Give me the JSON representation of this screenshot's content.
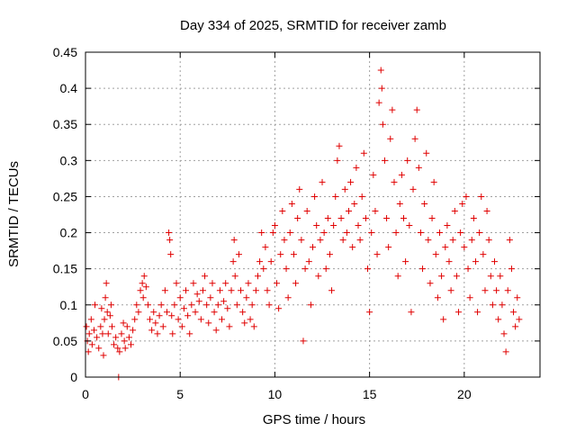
{
  "chart_data": {
    "type": "scatter",
    "title": "Day 334 of 2025, SRMTID for receiver zamb",
    "xlabel": "GPS time / hours",
    "ylabel": "SRMTID / TECUs",
    "xlim": [
      0,
      24
    ],
    "ylim": [
      0,
      0.45
    ],
    "xticks": [
      0,
      5,
      10,
      15,
      20
    ],
    "yticks": [
      0,
      0.05,
      0.1,
      0.15,
      0.2,
      0.25,
      0.3,
      0.35,
      0.4,
      0.45
    ],
    "xtick_labels": [
      "0",
      "5",
      "10",
      "15",
      "20"
    ],
    "ytick_labels": [
      "0",
      "0.05",
      "0.1",
      "0.15",
      "0.2",
      "0.25",
      "0.3",
      "0.35",
      "0.4",
      "0.45"
    ],
    "grid": true,
    "marker": "+",
    "color": "#e00000",
    "series": [
      {
        "name": "SRMTID",
        "points": [
          [
            0.05,
            0.07
          ],
          [
            0.1,
            0.05
          ],
          [
            0.15,
            0.035
          ],
          [
            0.2,
            0.06
          ],
          [
            0.3,
            0.08
          ],
          [
            0.35,
            0.045
          ],
          [
            0.45,
            0.065
          ],
          [
            0.5,
            0.1
          ],
          [
            0.6,
            0.055
          ],
          [
            0.7,
            0.04
          ],
          [
            0.8,
            0.07
          ],
          [
            0.85,
            0.095
          ],
          [
            0.9,
            0.06
          ],
          [
            0.95,
            0.03
          ],
          [
            1.0,
            0.08
          ],
          [
            1.05,
            0.11
          ],
          [
            1.1,
            0.13
          ],
          [
            1.15,
            0.09
          ],
          [
            1.2,
            0.06
          ],
          [
            1.3,
            0.085
          ],
          [
            1.35,
            0.1
          ],
          [
            1.4,
            0.07
          ],
          [
            1.5,
            0.045
          ],
          [
            1.6,
            0.055
          ],
          [
            1.7,
            0.04
          ],
          [
            1.75,
            0.0
          ],
          [
            1.8,
            0.035
          ],
          [
            1.9,
            0.06
          ],
          [
            2.0,
            0.075
          ],
          [
            2.05,
            0.05
          ],
          [
            2.1,
            0.04
          ],
          [
            2.2,
            0.07
          ],
          [
            2.3,
            0.055
          ],
          [
            2.4,
            0.045
          ],
          [
            2.5,
            0.065
          ],
          [
            2.6,
            0.08
          ],
          [
            2.7,
            0.1
          ],
          [
            2.8,
            0.09
          ],
          [
            2.9,
            0.12
          ],
          [
            3.0,
            0.13
          ],
          [
            3.05,
            0.11
          ],
          [
            3.1,
            0.14
          ],
          [
            3.2,
            0.125
          ],
          [
            3.3,
            0.1
          ],
          [
            3.4,
            0.08
          ],
          [
            3.5,
            0.065
          ],
          [
            3.6,
            0.09
          ],
          [
            3.7,
            0.075
          ],
          [
            3.8,
            0.06
          ],
          [
            3.9,
            0.085
          ],
          [
            4.0,
            0.1
          ],
          [
            4.1,
            0.07
          ],
          [
            4.2,
            0.12
          ],
          [
            4.3,
            0.09
          ],
          [
            4.4,
            0.2
          ],
          [
            4.45,
            0.19
          ],
          [
            4.5,
            0.17
          ],
          [
            4.55,
            0.085
          ],
          [
            4.6,
            0.06
          ],
          [
            4.7,
            0.1
          ],
          [
            4.8,
            0.13
          ],
          [
            4.9,
            0.08
          ],
          [
            5.0,
            0.11
          ],
          [
            5.1,
            0.07
          ],
          [
            5.2,
            0.095
          ],
          [
            5.3,
            0.12
          ],
          [
            5.4,
            0.085
          ],
          [
            5.5,
            0.06
          ],
          [
            5.6,
            0.1
          ],
          [
            5.7,
            0.13
          ],
          [
            5.8,
            0.09
          ],
          [
            5.9,
            0.115
          ],
          [
            6.0,
            0.105
          ],
          [
            6.1,
            0.08
          ],
          [
            6.2,
            0.12
          ],
          [
            6.3,
            0.14
          ],
          [
            6.4,
            0.1
          ],
          [
            6.5,
            0.075
          ],
          [
            6.6,
            0.11
          ],
          [
            6.7,
            0.13
          ],
          [
            6.8,
            0.09
          ],
          [
            6.9,
            0.065
          ],
          [
            7.0,
            0.1
          ],
          [
            7.1,
            0.12
          ],
          [
            7.2,
            0.08
          ],
          [
            7.3,
            0.105
          ],
          [
            7.4,
            0.13
          ],
          [
            7.5,
            0.095
          ],
          [
            7.6,
            0.07
          ],
          [
            7.7,
            0.12
          ],
          [
            7.8,
            0.16
          ],
          [
            7.85,
            0.19
          ],
          [
            7.9,
            0.14
          ],
          [
            8.0,
            0.1
          ],
          [
            8.1,
            0.17
          ],
          [
            8.2,
            0.12
          ],
          [
            8.3,
            0.09
          ],
          [
            8.4,
            0.075
          ],
          [
            8.5,
            0.11
          ],
          [
            8.6,
            0.13
          ],
          [
            8.7,
            0.08
          ],
          [
            8.8,
            0.1
          ],
          [
            8.9,
            0.07
          ],
          [
            9.0,
            0.12
          ],
          [
            9.1,
            0.14
          ],
          [
            9.2,
            0.16
          ],
          [
            9.3,
            0.2
          ],
          [
            9.4,
            0.15
          ],
          [
            9.5,
            0.18
          ],
          [
            9.6,
            0.12
          ],
          [
            9.7,
            0.1
          ],
          [
            9.8,
            0.16
          ],
          [
            9.9,
            0.2
          ],
          [
            10.0,
            0.21
          ],
          [
            10.1,
            0.13
          ],
          [
            10.2,
            0.095
          ],
          [
            10.3,
            0.17
          ],
          [
            10.4,
            0.23
          ],
          [
            10.5,
            0.19
          ],
          [
            10.6,
            0.15
          ],
          [
            10.7,
            0.11
          ],
          [
            10.8,
            0.2
          ],
          [
            10.9,
            0.24
          ],
          [
            11.0,
            0.17
          ],
          [
            11.1,
            0.13
          ],
          [
            11.2,
            0.22
          ],
          [
            11.3,
            0.26
          ],
          [
            11.4,
            0.19
          ],
          [
            11.5,
            0.05
          ],
          [
            11.6,
            0.15
          ],
          [
            11.7,
            0.23
          ],
          [
            11.8,
            0.16
          ],
          [
            11.9,
            0.1
          ],
          [
            12.0,
            0.18
          ],
          [
            12.1,
            0.25
          ],
          [
            12.2,
            0.21
          ],
          [
            12.3,
            0.14
          ],
          [
            12.4,
            0.19
          ],
          [
            12.5,
            0.27
          ],
          [
            12.6,
            0.2
          ],
          [
            12.7,
            0.15
          ],
          [
            12.8,
            0.22
          ],
          [
            12.9,
            0.17
          ],
          [
            13.0,
            0.12
          ],
          [
            13.1,
            0.21
          ],
          [
            13.2,
            0.25
          ],
          [
            13.3,
            0.3
          ],
          [
            13.4,
            0.32
          ],
          [
            13.5,
            0.22
          ],
          [
            13.6,
            0.19
          ],
          [
            13.7,
            0.26
          ],
          [
            13.8,
            0.2
          ],
          [
            13.9,
            0.23
          ],
          [
            14.0,
            0.27
          ],
          [
            14.1,
            0.18
          ],
          [
            14.2,
            0.24
          ],
          [
            14.3,
            0.29
          ],
          [
            14.4,
            0.21
          ],
          [
            14.5,
            0.19
          ],
          [
            14.6,
            0.25
          ],
          [
            14.7,
            0.31
          ],
          [
            14.8,
            0.22
          ],
          [
            14.9,
            0.15
          ],
          [
            15.0,
            0.09
          ],
          [
            15.1,
            0.2
          ],
          [
            15.2,
            0.28
          ],
          [
            15.3,
            0.23
          ],
          [
            15.4,
            0.17
          ],
          [
            15.5,
            0.38
          ],
          [
            15.6,
            0.425
          ],
          [
            15.65,
            0.4
          ],
          [
            15.7,
            0.35
          ],
          [
            15.8,
            0.3
          ],
          [
            15.9,
            0.22
          ],
          [
            16.0,
            0.18
          ],
          [
            16.1,
            0.33
          ],
          [
            16.2,
            0.37
          ],
          [
            16.3,
            0.27
          ],
          [
            16.4,
            0.2
          ],
          [
            16.5,
            0.14
          ],
          [
            16.6,
            0.24
          ],
          [
            16.7,
            0.28
          ],
          [
            16.8,
            0.22
          ],
          [
            16.9,
            0.16
          ],
          [
            17.0,
            0.3
          ],
          [
            17.1,
            0.21
          ],
          [
            17.2,
            0.09
          ],
          [
            17.3,
            0.26
          ],
          [
            17.4,
            0.33
          ],
          [
            17.5,
            0.37
          ],
          [
            17.6,
            0.29
          ],
          [
            17.7,
            0.2
          ],
          [
            17.8,
            0.15
          ],
          [
            17.9,
            0.24
          ],
          [
            18.0,
            0.31
          ],
          [
            18.1,
            0.19
          ],
          [
            18.2,
            0.13
          ],
          [
            18.3,
            0.22
          ],
          [
            18.4,
            0.27
          ],
          [
            18.5,
            0.17
          ],
          [
            18.6,
            0.11
          ],
          [
            18.7,
            0.2
          ],
          [
            18.8,
            0.14
          ],
          [
            18.9,
            0.08
          ],
          [
            19.0,
            0.18
          ],
          [
            19.1,
            0.21
          ],
          [
            19.2,
            0.16
          ],
          [
            19.3,
            0.12
          ],
          [
            19.4,
            0.19
          ],
          [
            19.5,
            0.23
          ],
          [
            19.6,
            0.14
          ],
          [
            19.7,
            0.09
          ],
          [
            19.8,
            0.2
          ],
          [
            19.9,
            0.24
          ],
          [
            20.0,
            0.18
          ],
          [
            20.1,
            0.25
          ],
          [
            20.2,
            0.15
          ],
          [
            20.3,
            0.11
          ],
          [
            20.4,
            0.19
          ],
          [
            20.5,
            0.22
          ],
          [
            20.6,
            0.16
          ],
          [
            20.7,
            0.09
          ],
          [
            20.8,
            0.2
          ],
          [
            20.9,
            0.25
          ],
          [
            21.0,
            0.17
          ],
          [
            21.1,
            0.12
          ],
          [
            21.2,
            0.23
          ],
          [
            21.3,
            0.19
          ],
          [
            21.4,
            0.14
          ],
          [
            21.5,
            0.1
          ],
          [
            21.6,
            0.16
          ],
          [
            21.7,
            0.12
          ],
          [
            21.8,
            0.08
          ],
          [
            21.9,
            0.14
          ],
          [
            22.0,
            0.1
          ],
          [
            22.1,
            0.06
          ],
          [
            22.2,
            0.035
          ],
          [
            22.3,
            0.12
          ],
          [
            22.4,
            0.19
          ],
          [
            22.5,
            0.15
          ],
          [
            22.6,
            0.09
          ],
          [
            22.7,
            0.07
          ],
          [
            22.8,
            0.11
          ],
          [
            22.9,
            0.08
          ]
        ]
      }
    ]
  }
}
